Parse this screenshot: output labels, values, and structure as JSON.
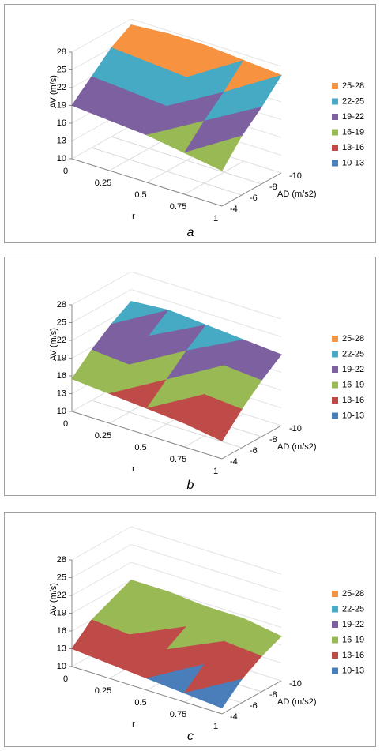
{
  "chart_data": [
    {
      "type": "surface",
      "caption": "a",
      "z_label": "AV (m/s)",
      "x_label": "r",
      "depth_label": "AD (m/s2)",
      "xticks": [
        0,
        0.25,
        0.5,
        0.75,
        1
      ],
      "depth_ticks": [
        -4,
        -6,
        -8,
        -10
      ],
      "zlim": [
        10,
        28
      ],
      "zticks": [
        10,
        13,
        16,
        19,
        22,
        25,
        28
      ],
      "z": [
        [
          19,
          18.5,
          18,
          17,
          16
        ],
        [
          22,
          21.5,
          21,
          20.5,
          20
        ],
        [
          25,
          24.5,
          24,
          23.5,
          23
        ],
        [
          27,
          27.5,
          27.5,
          27,
          26.5
        ]
      ],
      "bands": [
        {
          "name": "25-28",
          "color": "#f69240",
          "min": 25,
          "max": 28
        },
        {
          "name": "22-25",
          "color": "#46aac5",
          "min": 22,
          "max": 25
        },
        {
          "name": "19-22",
          "color": "#7d60a0",
          "min": 19,
          "max": 22
        },
        {
          "name": "16-19",
          "color": "#98b954",
          "min": 16,
          "max": 19
        },
        {
          "name": "13-16",
          "color": "#be4b48",
          "min": 13,
          "max": 16
        },
        {
          "name": "10-13",
          "color": "#4a7ebb",
          "min": 10,
          "max": 13
        }
      ]
    },
    {
      "type": "surface",
      "caption": "b",
      "z_label": "AV (m/s)",
      "x_label": "r",
      "depth_label": "AD (m/s2)",
      "xticks": [
        0,
        0.25,
        0.5,
        0.75,
        1
      ],
      "depth_ticks": [
        -4,
        -6,
        -8,
        -10
      ],
      "zlim": [
        10,
        28
      ],
      "zticks": [
        10,
        13,
        16,
        19,
        22,
        25,
        28
      ],
      "z": [
        [
          15.5,
          15,
          14.5,
          14,
          13
        ],
        [
          18.5,
          18,
          17.5,
          17,
          16.5
        ],
        [
          21,
          21,
          20.5,
          20,
          19.5
        ],
        [
          23,
          23.5,
          23,
          22.5,
          22
        ]
      ],
      "bands": [
        {
          "name": "25-28",
          "color": "#f69240",
          "min": 25,
          "max": 28
        },
        {
          "name": "22-25",
          "color": "#46aac5",
          "min": 22,
          "max": 25
        },
        {
          "name": "19-22",
          "color": "#7d60a0",
          "min": 19,
          "max": 22
        },
        {
          "name": "16-19",
          "color": "#98b954",
          "min": 16,
          "max": 19
        },
        {
          "name": "13-16",
          "color": "#be4b48",
          "min": 13,
          "max": 16
        },
        {
          "name": "10-13",
          "color": "#4a7ebb",
          "min": 10,
          "max": 13
        }
      ]
    },
    {
      "type": "surface",
      "caption": "c",
      "z_label": "AV (m/s)",
      "x_label": "r",
      "depth_label": "AD (m/s2)",
      "xticks": [
        0,
        0.25,
        0.5,
        0.75,
        1
      ],
      "depth_ticks": [
        -4,
        -6,
        -8,
        -10
      ],
      "zlim": [
        10,
        28
      ],
      "zticks": [
        10,
        13,
        16,
        19,
        22,
        25,
        28
      ],
      "z": [
        [
          13,
          12.5,
          12,
          11.5,
          11
        ],
        [
          16,
          15.5,
          15,
          14.5,
          14
        ],
        [
          17.5,
          17,
          17,
          16.5,
          16
        ],
        [
          19,
          19,
          18.5,
          18.5,
          17.5
        ]
      ],
      "bands": [
        {
          "name": "25-28",
          "color": "#f69240",
          "min": 25,
          "max": 28
        },
        {
          "name": "22-25",
          "color": "#46aac5",
          "min": 22,
          "max": 25
        },
        {
          "name": "19-22",
          "color": "#7d60a0",
          "min": 19,
          "max": 22
        },
        {
          "name": "16-19",
          "color": "#98b954",
          "min": 16,
          "max": 19
        },
        {
          "name": "13-16",
          "color": "#be4b48",
          "min": 13,
          "max": 16
        },
        {
          "name": "10-13",
          "color": "#4a7ebb",
          "min": 10,
          "max": 13
        }
      ]
    }
  ]
}
